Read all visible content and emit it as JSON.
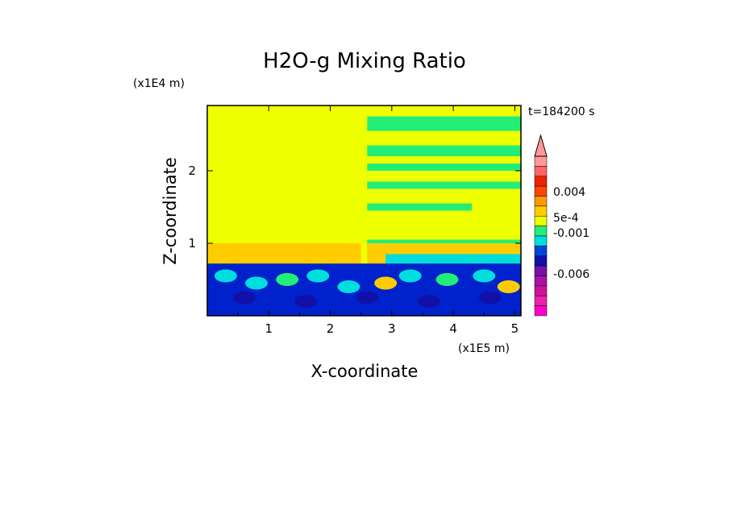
{
  "chart_data": {
    "type": "heatmap",
    "title": "H2O-g Mixing Ratio",
    "xlabel": "X-coordinate",
    "ylabel": "Z-coordinate",
    "x_scale_label": "(x1E5 m)",
    "y_scale_label": "(x1E4 m)",
    "time_label": "t=184200 s",
    "x_ticks": [
      1,
      2,
      3,
      4,
      5
    ],
    "y_ticks": [
      1,
      2
    ],
    "xlim": [
      0,
      5.1
    ],
    "ylim": [
      0,
      2.9
    ],
    "colorbar": {
      "colors": [
        "#ff00cc",
        "#ee22aa",
        "#cc1199",
        "#aa11aa",
        "#7711aa",
        "#1111aa",
        "#0044dd",
        "#00dddd",
        "#22ee77",
        "#eeff00",
        "#ffcc00",
        "#ff9900",
        "#ff4400",
        "#ee2200",
        "#ff6666",
        "#ff9999"
      ],
      "labels": [
        "0.004",
        "5e-4",
        "-0.001",
        "-0.006"
      ]
    },
    "regions_note_colors": {
      "lower": "#0022cc",
      "upper": "#eeff00",
      "mid": "#ffcc00",
      "green": "#22ee77",
      "cyan": "#00dddd"
    }
  }
}
